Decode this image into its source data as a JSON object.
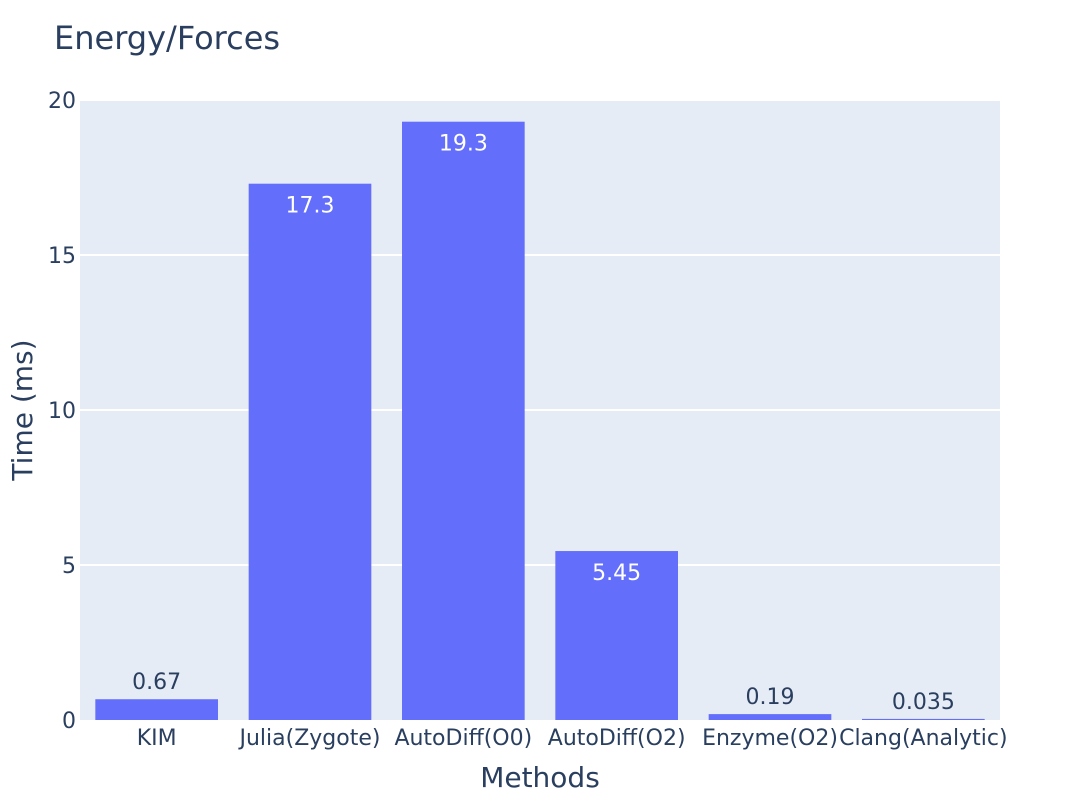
{
  "chart_data": {
    "type": "bar",
    "title": "Energy/Forces",
    "xlabel": "Methods",
    "ylabel": "Time (ms)",
    "categories": [
      "KIM",
      "Julia(Zygote)",
      "AutoDiff(O0)",
      "AutoDiff(O2)",
      "Enzyme(O2)",
      "Clang(Analytic)"
    ],
    "values": [
      0.67,
      17.3,
      19.3,
      5.45,
      0.19,
      0.035
    ],
    "data_labels": [
      "0.67",
      "17.3",
      "19.3",
      "5.45",
      "0.19",
      "0.035"
    ],
    "ylim": [
      0,
      20
    ],
    "yticks": [
      0,
      5,
      10,
      15,
      20
    ],
    "ytick_labels": [
      "0",
      "5",
      "10",
      "15",
      "20"
    ],
    "grid": true,
    "colors": {
      "bar": "#636efa",
      "plot_bg": "#e5ecf6",
      "grid": "#ffffff",
      "text": "#2a3f5f",
      "inside_label": "#ffffff"
    }
  }
}
